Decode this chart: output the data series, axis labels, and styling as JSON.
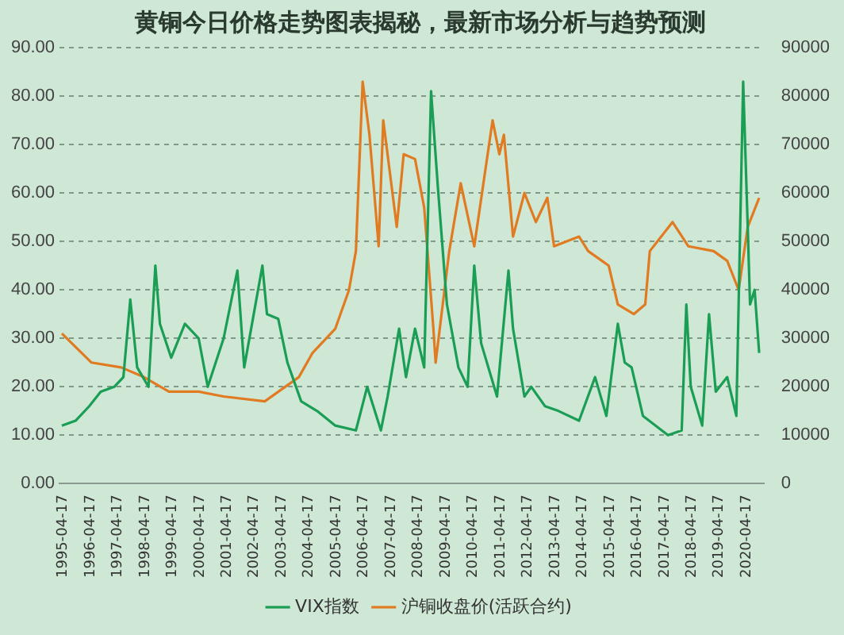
{
  "chart_data": {
    "type": "line",
    "title": "黄铜今日价格走势图表揭秘，最新市场分析与趋势预测",
    "xlim": [
      "1995-03",
      "2020-12"
    ],
    "xticks": [
      "1995-04-17",
      "1996-04-17",
      "1997-04-17",
      "1998-04-17",
      "1999-04-17",
      "2000-04-17",
      "2001-04-17",
      "2002-04-17",
      "2003-04-17",
      "2004-04-17",
      "2005-04-17",
      "2006-04-17",
      "2007-04-17",
      "2008-04-17",
      "2009-04-17",
      "2010-04-17",
      "2011-04-17",
      "2012-04-17",
      "2013-04-17",
      "2014-04-17",
      "2015-04-17",
      "2016-04-17",
      "2017-04-17",
      "2018-04-17",
      "2019-04-17",
      "2020-04-17"
    ],
    "ylim": [
      0,
      90
    ],
    "yticks": [
      {
        "value": 0,
        "label": "0.00"
      },
      {
        "value": 10,
        "label": "10.00"
      },
      {
        "value": 20,
        "label": "20.00"
      },
      {
        "value": 30,
        "label": "30.00"
      },
      {
        "value": 40,
        "label": "40.00"
      },
      {
        "value": 50,
        "label": "50.00"
      },
      {
        "value": 60,
        "label": "60.00"
      },
      {
        "value": 70,
        "label": "70.00"
      },
      {
        "value": 80,
        "label": "80.00"
      },
      {
        "value": 90,
        "label": "90.00"
      }
    ],
    "y2lim": [
      0,
      90000
    ],
    "y2ticks": [
      0,
      10000,
      20000,
      30000,
      40000,
      50000,
      60000,
      70000,
      80000,
      90000
    ],
    "grid": "y",
    "legend": "bottom",
    "marker": "none",
    "line_style": "solid",
    "series": [
      {
        "name": "VIX指数",
        "color": "#1a9e55",
        "x": [
          "1995-04",
          "1995-10",
          "1996-04",
          "1996-09",
          "1997-03",
          "1997-07",
          "1997-10",
          "1998-01",
          "1998-06",
          "1998-09",
          "1998-11",
          "1999-04",
          "1999-10",
          "2000-04",
          "2000-08",
          "2001-03",
          "2001-09",
          "2001-12",
          "2002-08",
          "2002-10",
          "2003-03",
          "2003-07",
          "2004-01",
          "2004-08",
          "2005-04",
          "2006-01",
          "2006-06",
          "2006-12",
          "2007-03",
          "2007-08",
          "2007-11",
          "2008-03",
          "2008-07",
          "2008-10",
          "2009-01",
          "2009-05",
          "2009-10",
          "2010-02",
          "2010-05",
          "2010-08",
          "2011-03",
          "2011-08",
          "2011-10",
          "2012-03",
          "2012-06",
          "2012-12",
          "2013-06",
          "2014-03",
          "2014-10",
          "2015-03",
          "2015-08",
          "2015-11",
          "2016-02",
          "2016-07",
          "2017-06",
          "2017-12",
          "2018-02",
          "2018-04",
          "2018-09",
          "2018-12",
          "2019-03",
          "2019-08",
          "2019-12",
          "2020-03",
          "2020-05",
          "2020-06",
          "2020-08",
          "2020-10"
        ],
        "values": [
          12,
          13,
          16,
          19,
          20,
          22,
          38,
          24,
          20,
          45,
          33,
          26,
          33,
          30,
          20,
          30,
          44,
          24,
          45,
          35,
          34,
          25,
          17,
          15,
          12,
          11,
          20,
          11,
          18,
          32,
          22,
          32,
          24,
          81,
          61,
          37,
          24,
          20,
          45,
          29,
          18,
          44,
          32,
          18,
          20,
          16,
          15,
          13,
          22,
          14,
          33,
          25,
          24,
          14,
          10,
          11,
          37,
          20,
          12,
          35,
          19,
          22,
          14,
          83,
          53,
          37,
          40,
          27
        ]
      },
      {
        "name": "沪铜收盘价(活跃合约)",
        "color": "#e07b22",
        "axis": "y2",
        "x": [
          "1995-04",
          "1996-05",
          "1997-06",
          "1998-04",
          "1999-03",
          "2000-04",
          "2001-03",
          "2002-09",
          "2003-12",
          "2004-06",
          "2005-04",
          "2005-10",
          "2006-01",
          "2006-04",
          "2006-07",
          "2006-11",
          "2007-01",
          "2007-07",
          "2007-10",
          "2008-03",
          "2008-07",
          "2008-11",
          "2008-12",
          "2009-06",
          "2009-11",
          "2010-05",
          "2011-01",
          "2011-04",
          "2011-06",
          "2011-10",
          "2012-03",
          "2012-08",
          "2013-01",
          "2013-04",
          "2014-03",
          "2014-07",
          "2015-04",
          "2015-08",
          "2016-03",
          "2016-08",
          "2016-10",
          "2017-08",
          "2018-03",
          "2019-02",
          "2019-08",
          "2020-01",
          "2020-05",
          "2020-10"
        ],
        "values": [
          31000,
          25000,
          24000,
          22000,
          19000,
          19000,
          18000,
          17000,
          22000,
          27000,
          32000,
          40000,
          48000,
          83000,
          72000,
          49000,
          75000,
          53000,
          68000,
          67000,
          57000,
          32000,
          25000,
          48000,
          62000,
          49000,
          75000,
          68000,
          72000,
          51000,
          60000,
          54000,
          59000,
          49000,
          51000,
          48000,
          45000,
          37000,
          35000,
          37000,
          48000,
          54000,
          49000,
          48000,
          46000,
          40000,
          53000,
          59000
        ]
      }
    ]
  }
}
